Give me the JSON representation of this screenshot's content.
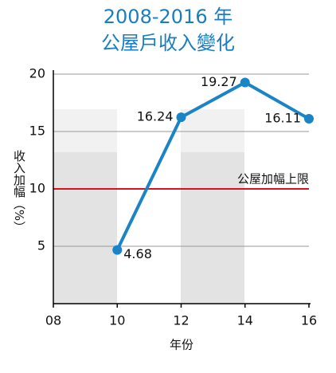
{
  "chart_data": {
    "type": "line",
    "title": "2008-2016 年",
    "subtitle": "公屋戶收入變化",
    "x_label": "年份",
    "y_label": "收入加幅（%）",
    "x": [
      10,
      12,
      14,
      16
    ],
    "series": [
      {
        "name": "收入加幅",
        "color": "#1a84c7",
        "values": [
          4.68,
          16.24,
          19.27,
          16.11
        ]
      }
    ],
    "xlim": [
      8,
      16
    ],
    "xticks": [
      {
        "value": 8,
        "label": "08"
      },
      10,
      12,
      14,
      16
    ],
    "ylim": [
      0,
      20
    ],
    "yticks": [
      5,
      10,
      15,
      20
    ],
    "grid": true,
    "reference_line": {
      "value": 10,
      "label": "公屋加幅上限",
      "color": "#d7141d"
    }
  }
}
